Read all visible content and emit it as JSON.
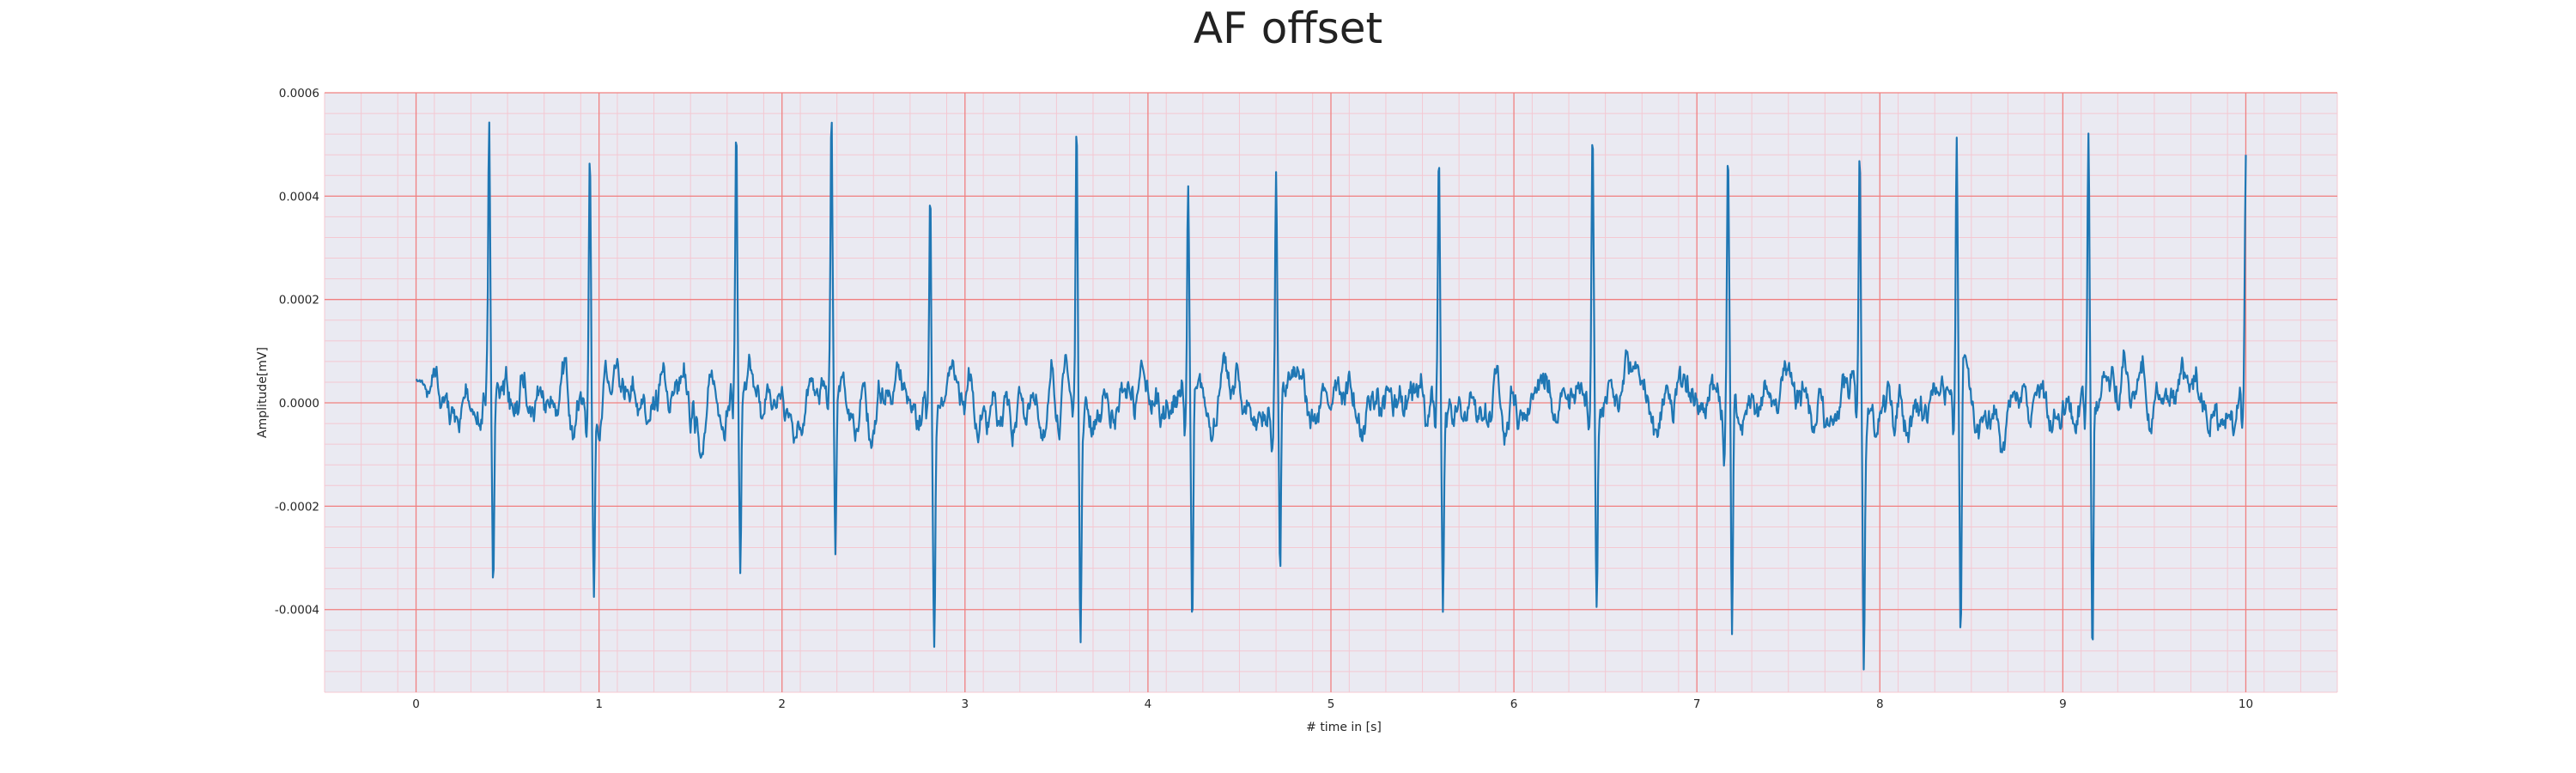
{
  "chart_data": {
    "type": "line",
    "title": "AF offset",
    "xlabel": "# time in [s]",
    "ylabel": "Amplitude[mV]",
    "xlim": [
      -0.5,
      10.5
    ],
    "ylim": [
      -0.00056,
      0.0006
    ],
    "x_ticks": [
      {
        "value": 0,
        "label": "0"
      },
      {
        "value": 1,
        "label": "1"
      },
      {
        "value": 2,
        "label": "2"
      },
      {
        "value": 3,
        "label": "3"
      },
      {
        "value": 4,
        "label": "4"
      },
      {
        "value": 5,
        "label": "5"
      },
      {
        "value": 6,
        "label": "6"
      },
      {
        "value": 7,
        "label": "7"
      },
      {
        "value": 8,
        "label": "8"
      },
      {
        "value": 9,
        "label": "9"
      },
      {
        "value": 10,
        "label": "10"
      }
    ],
    "y_ticks": [
      {
        "value": -0.0004,
        "label": "-0.0004"
      },
      {
        "value": -0.0002,
        "label": "-0.0002"
      },
      {
        "value": 0.0,
        "label": "0.0000"
      },
      {
        "value": 0.0002,
        "label": "0.0002"
      },
      {
        "value": 0.0004,
        "label": "0.0004"
      },
      {
        "value": 0.0006,
        "label": "0.0006"
      }
    ],
    "grid": true,
    "legend": "none",
    "colors": {
      "line": "#1f77b4",
      "plot_background": "#eaeaf2",
      "major_grid": "#f08080",
      "minor_grid": "#f4c8d2"
    },
    "series": [
      {
        "peaks": [
          {
            "t": 0.4,
            "high": 0.00051,
            "low": -0.00032
          },
          {
            "t": 0.95,
            "high": 0.00053,
            "low": -0.00035
          },
          {
            "t": 1.75,
            "high": 0.00053,
            "low": -0.00034
          },
          {
            "t": 2.27,
            "high": 0.00051,
            "low": -0.00034
          },
          {
            "t": 2.81,
            "high": 0.00048,
            "low": -0.00038
          },
          {
            "t": 3.61,
            "high": 0.00053,
            "low": -0.00042
          },
          {
            "t": 4.22,
            "high": 0.00047,
            "low": -0.00045
          },
          {
            "t": 4.7,
            "high": 0.00047,
            "low": -0.00037
          },
          {
            "t": 5.59,
            "high": 0.00046,
            "low": -0.00036
          },
          {
            "t": 6.43,
            "high": 0.00053,
            "low": -0.00038
          },
          {
            "t": 7.17,
            "high": 0.00047,
            "low": -0.00048
          },
          {
            "t": 7.89,
            "high": 0.00052,
            "low": -0.00047
          },
          {
            "t": 8.42,
            "high": 0.00053,
            "low": -0.00051
          },
          {
            "t": 9.14,
            "high": 0.00055,
            "low": -0.00048
          },
          {
            "t": 10.0,
            "high": 0.00047,
            "low": -7e-05
          }
        ],
        "start": {
          "t": 0.0,
          "y": 5e-05
        },
        "baseline_range": [
          -0.0001,
          0.0001
        ]
      }
    ]
  }
}
